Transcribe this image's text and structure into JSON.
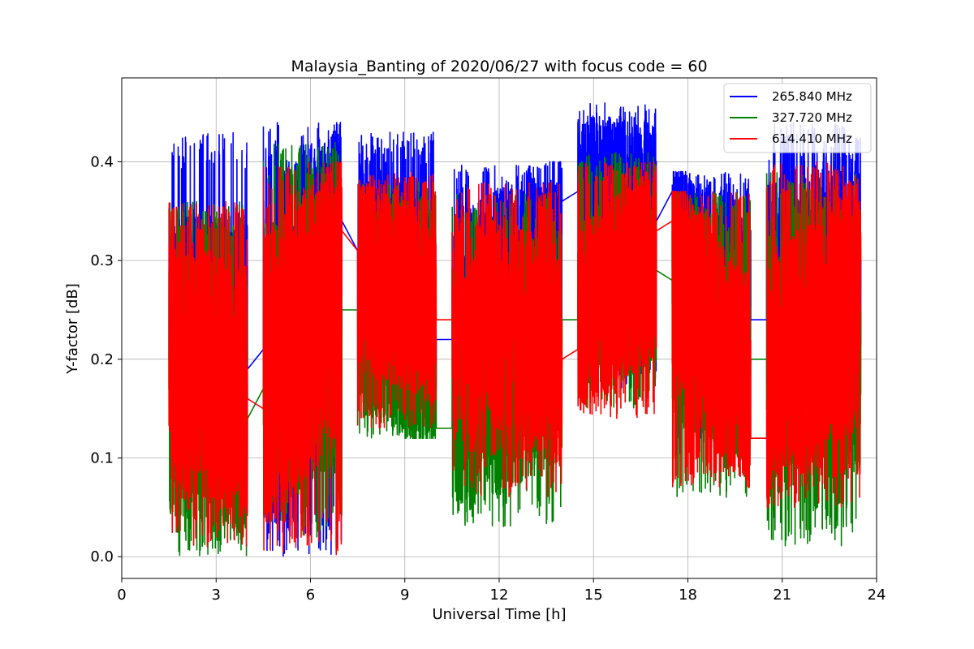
{
  "chart_data": {
    "type": "line",
    "title": "Malaysia_Banting of 2020/06/27 with focus code = 60",
    "xlabel": "Universal Time [h]",
    "ylabel": "Y-factor [dB]",
    "xlim": [
      0,
      24
    ],
    "ylim": [
      -0.022,
      0.485
    ],
    "xticks": [
      0,
      3,
      6,
      9,
      12,
      15,
      18,
      21,
      24
    ],
    "xtick_labels": [
      "0",
      "3",
      "6",
      "9",
      "12",
      "15",
      "18",
      "21",
      "24"
    ],
    "yticks": [
      0.0,
      0.1,
      0.2,
      0.3,
      0.4
    ],
    "ytick_labels": [
      "0.0",
      "0.1",
      "0.2",
      "0.3",
      "0.4"
    ],
    "grid": true,
    "legend_position": "top-right",
    "series": [
      {
        "name": "265.840 MHz",
        "color": "#0000ff",
        "segments": [
          {
            "x": [
              1.5,
              4.0
            ],
            "ymin": 0.12,
            "ymax": 0.43,
            "ystart": 0.2,
            "yend": 0.19
          },
          {
            "x": [
              4.5,
              7.0
            ],
            "ymin": 0.0,
            "ymax": 0.44,
            "ystart": 0.21,
            "yend": 0.34
          },
          {
            "x": [
              7.5,
              10.0
            ],
            "ymin": 0.15,
            "ymax": 0.43,
            "ystart": 0.31,
            "yend": 0.22
          },
          {
            "x": [
              10.5,
              14.0
            ],
            "ymin": 0.12,
            "ymax": 0.4,
            "ystart": 0.22,
            "yend": 0.36
          },
          {
            "x": [
              14.5,
              17.0
            ],
            "ymin": 0.17,
            "ymax": 0.46,
            "ystart": 0.37,
            "yend": 0.34
          },
          {
            "x": [
              17.5,
              20.0
            ],
            "ymin": 0.1,
            "ymax": 0.39,
            "ystart": 0.37,
            "yend": 0.24
          },
          {
            "x": [
              20.5,
              23.5
            ],
            "ymin": 0.1,
            "ymax": 0.44,
            "ystart": 0.24,
            "yend": 0.3
          }
        ]
      },
      {
        "name": "327.720 MHz",
        "color": "#008000",
        "segments": [
          {
            "x": [
              1.5,
              4.0
            ],
            "ymin": 0.0,
            "ymax": 0.36,
            "ystart": 0.17,
            "yend": 0.14
          },
          {
            "x": [
              4.5,
              7.0
            ],
            "ymin": 0.02,
            "ymax": 0.42,
            "ystart": 0.17,
            "yend": 0.25
          },
          {
            "x": [
              7.5,
              10.0
            ],
            "ymin": 0.12,
            "ymax": 0.38,
            "ystart": 0.25,
            "yend": 0.13
          },
          {
            "x": [
              10.5,
              14.0
            ],
            "ymin": 0.03,
            "ymax": 0.37,
            "ystart": 0.13,
            "yend": 0.24
          },
          {
            "x": [
              14.5,
              17.0
            ],
            "ymin": 0.15,
            "ymax": 0.41,
            "ystart": 0.24,
            "yend": 0.29
          },
          {
            "x": [
              17.5,
              20.0
            ],
            "ymin": 0.06,
            "ymax": 0.37,
            "ystart": 0.28,
            "yend": 0.2
          },
          {
            "x": [
              20.5,
              23.5
            ],
            "ymin": 0.01,
            "ymax": 0.39,
            "ystart": 0.2,
            "yend": 0.25
          }
        ]
      },
      {
        "name": "614.410 MHz",
        "color": "#ff0000",
        "segments": [
          {
            "x": [
              1.5,
              4.0
            ],
            "ymin": 0.01,
            "ymax": 0.36,
            "ystart": 0.2,
            "yend": 0.16
          },
          {
            "x": [
              4.5,
              7.0
            ],
            "ymin": 0.0,
            "ymax": 0.4,
            "ystart": 0.15,
            "yend": 0.33
          },
          {
            "x": [
              7.5,
              10.0
            ],
            "ymin": 0.13,
            "ymax": 0.39,
            "ystart": 0.31,
            "yend": 0.24
          },
          {
            "x": [
              10.5,
              14.0
            ],
            "ymin": 0.06,
            "ymax": 0.38,
            "ystart": 0.24,
            "yend": 0.2
          },
          {
            "x": [
              14.5,
              17.0
            ],
            "ymin": 0.14,
            "ymax": 0.4,
            "ystart": 0.21,
            "yend": 0.33
          },
          {
            "x": [
              17.5,
              20.0
            ],
            "ymin": 0.07,
            "ymax": 0.37,
            "ystart": 0.34,
            "yend": 0.12
          },
          {
            "x": [
              20.5,
              23.5
            ],
            "ymin": 0.05,
            "ymax": 0.4,
            "ystart": 0.12,
            "yend": 0.3
          }
        ]
      }
    ]
  }
}
